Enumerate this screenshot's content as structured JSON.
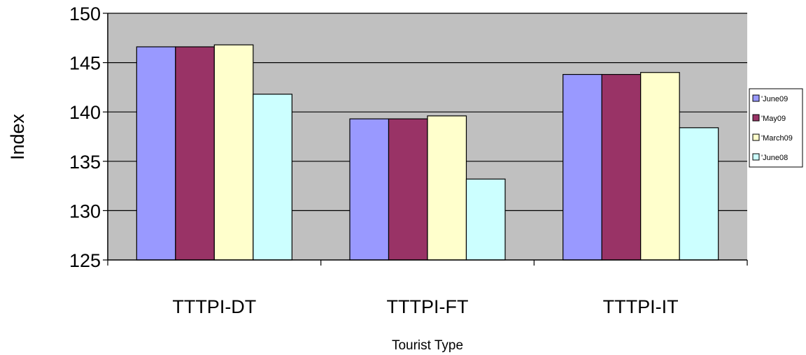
{
  "chart_data": {
    "type": "bar",
    "categories": [
      "TTTPI-DT",
      "TTTPI-FT",
      "TTTPI-IT"
    ],
    "series": [
      {
        "name": "'June09",
        "values": [
          146.6,
          139.3,
          143.8
        ],
        "color": "#9999ff"
      },
      {
        "name": "'May09",
        "values": [
          146.6,
          139.3,
          143.8
        ],
        "color": "#993366"
      },
      {
        "name": "'March09",
        "values": [
          146.8,
          139.6,
          144.0
        ],
        "color": "#ffffcc"
      },
      {
        "name": "'June08",
        "values": [
          141.8,
          133.2,
          138.4
        ],
        "color": "#ccffff"
      }
    ],
    "xlabel": "Tourist Type",
    "ylabel": "Index",
    "ylim": [
      125,
      150
    ],
    "yticks": [
      "125",
      "130",
      "135",
      "140",
      "145",
      "150"
    ],
    "grid": true,
    "plot_background": "#c0c0c0",
    "legend_position": "right"
  }
}
